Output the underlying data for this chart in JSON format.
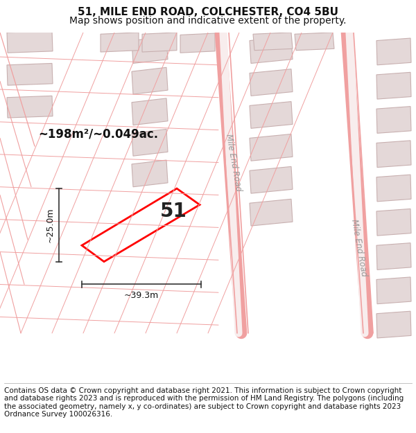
{
  "title_line1": "51, MILE END ROAD, COLCHESTER, CO4 5BU",
  "title_line2": "Map shows position and indicative extent of the property.",
  "footer_text": "Contains OS data © Crown copyright and database right 2021. This information is subject to Crown copyright and database rights 2023 and is reproduced with the permission of HM Land Registry. The polygons (including the associated geometry, namely x, y co-ordinates) are subject to Crown copyright and database rights 2023 Ordnance Survey 100026316.",
  "bg_color": "#ffffff",
  "map_bg": "#fdf5f5",
  "building_fill": "#e4d8d8",
  "building_edge": "#c8b0b0",
  "road_line_color": "#f0a0a0",
  "plot_line_color": "#ff0000",
  "dim_line_color": "#333333",
  "area_text": "~198m²/~0.049ac.",
  "label_51": "51",
  "dim_width": "~39.3m",
  "dim_height": "~25.0m",
  "road_label1": "Mile End Road",
  "road_label2": "Mile End Road",
  "title_fontsize": 11,
  "subtitle_fontsize": 10,
  "footer_fontsize": 7.5
}
